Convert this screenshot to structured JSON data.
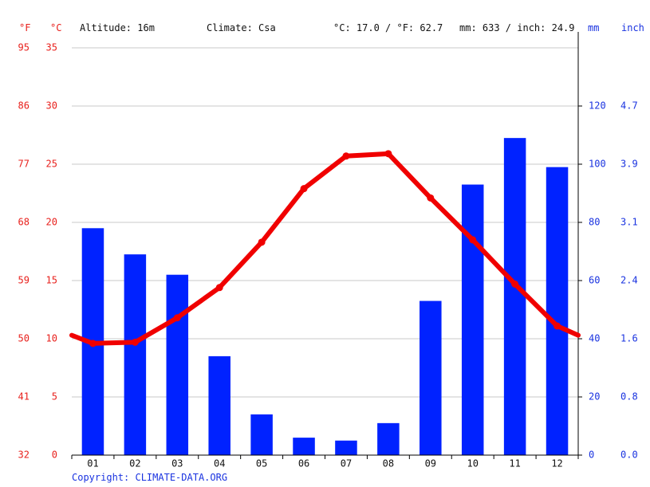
{
  "header": {
    "altitude": "Altitude: 16m",
    "climate": "Climate: Csa",
    "temp_avg": "°C: 17.0 / °F: 62.7",
    "precip_total": "mm: 633 / inch: 24.9"
  },
  "units": {
    "fahrenheit": "°F",
    "celsius": "°C",
    "mm": "mm",
    "inch": "inch"
  },
  "footer": {
    "copyright": "Copyright: CLIMATE-DATA.ORG"
  },
  "colors": {
    "temperature": "#f00000",
    "precipitation": "#0022ff",
    "temp_axis": "#e8201c",
    "precip_axis": "#1a33e0",
    "grid": "#c8c8c8"
  },
  "chart_data": {
    "type": "bar",
    "categories": [
      "01",
      "02",
      "03",
      "04",
      "05",
      "06",
      "07",
      "08",
      "09",
      "10",
      "11",
      "12"
    ],
    "series": [
      {
        "type": "bar",
        "axis": "right",
        "unit": "mm",
        "values": [
          78,
          69,
          62,
          34,
          14,
          6,
          5,
          11,
          53,
          93,
          109,
          99
        ]
      },
      {
        "type": "line",
        "axis": "left",
        "unit": "°C",
        "values": [
          9.6,
          9.7,
          11.8,
          14.4,
          18.3,
          22.9,
          25.7,
          25.9,
          22.1,
          18.5,
          14.7,
          11.1
        ]
      }
    ],
    "line_edge_values": [
      10.3,
      10.3
    ],
    "left_axis_celsius": {
      "ylim": [
        0,
        35
      ],
      "ticks": [
        "0",
        "5",
        "10",
        "15",
        "20",
        "25",
        "30",
        "35"
      ]
    },
    "left_axis_fahrenheit": {
      "ticks": [
        "32",
        "41",
        "50",
        "59",
        "68",
        "77",
        "86",
        "95"
      ]
    },
    "right_axis_mm": {
      "ylim": [
        0,
        140
      ],
      "ticks": [
        "0",
        "20",
        "40",
        "60",
        "80",
        "100",
        "120"
      ]
    },
    "right_axis_inch": {
      "ticks": [
        "0.0",
        "0.8",
        "1.6",
        "2.4",
        "3.1",
        "3.9",
        "4.7"
      ]
    },
    "grid": true
  }
}
